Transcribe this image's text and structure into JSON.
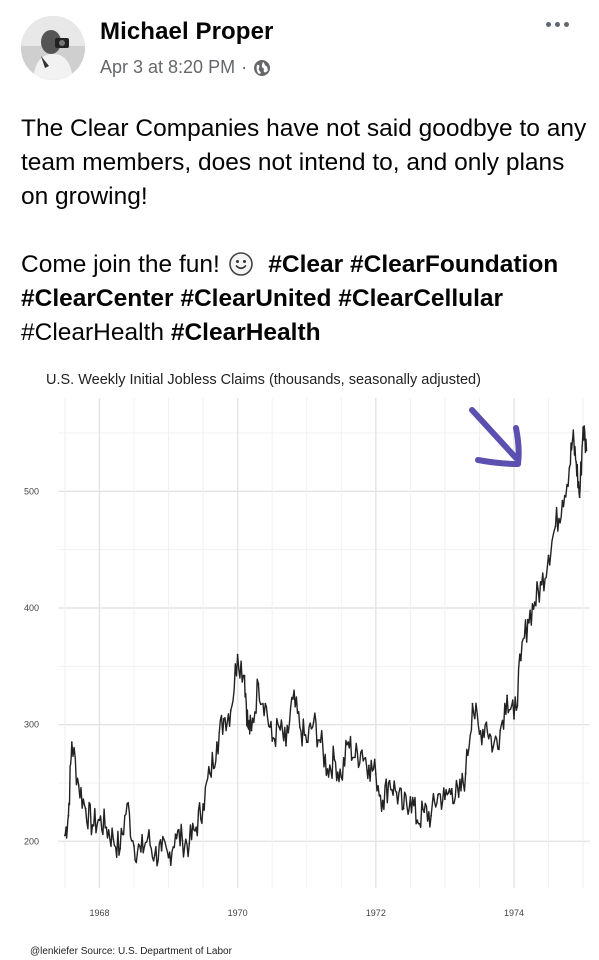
{
  "post": {
    "author": "Michael Proper",
    "timestamp": "Apr 3 at 8:20 PM",
    "separator": "·",
    "body_line1": "The Clear Companies have not said goodbye to any team members, does not intend to, and only plans on growing!",
    "body_line2_prefix": "Come join the fun!",
    "hashtags": [
      {
        "text": "#Clear",
        "bold": true
      },
      {
        "text": "#ClearFoundation",
        "bold": true
      },
      {
        "text": "#ClearCenter",
        "bold": true
      },
      {
        "text": "#ClearUnited",
        "bold": true
      },
      {
        "text": "#ClearCellular",
        "bold": true
      },
      {
        "text": "#ClearHealth",
        "bold": false
      },
      {
        "text": "#ClearHealth",
        "bold": true
      }
    ],
    "icons": {
      "more": "more-horizontal-icon",
      "privacy": "globe-icon",
      "emoji": "slightly-smiling-face-icon"
    }
  },
  "chart_data": {
    "type": "line",
    "title": "U.S. Weekly Initial Jobless Claims (thousands, seasonally adjusted)",
    "source": "@lenkiefer Source: U.S. Department of Labor",
    "x_ticks": [
      "1968",
      "1970",
      "1972",
      "1974"
    ],
    "y_ticks": [
      200,
      300,
      400,
      500
    ],
    "xlim": [
      1967.4,
      1975.1
    ],
    "ylim": [
      160,
      580
    ],
    "grid": true,
    "series": [
      {
        "color": "#222222",
        "x": [
          1967.5,
          1967.55,
          1967.6,
          1967.7,
          1967.8,
          1967.9,
          1968.0,
          1968.1,
          1968.2,
          1968.3,
          1968.4,
          1968.5,
          1968.6,
          1968.7,
          1968.8,
          1968.9,
          1969.0,
          1969.1,
          1969.2,
          1969.3,
          1969.4,
          1969.5,
          1969.6,
          1969.7,
          1969.8,
          1969.9,
          1970.0,
          1970.1,
          1970.15,
          1970.2,
          1970.3,
          1970.4,
          1970.5,
          1970.6,
          1970.7,
          1970.8,
          1970.9,
          1971.0,
          1971.1,
          1971.2,
          1971.3,
          1971.4,
          1971.5,
          1971.6,
          1971.7,
          1971.8,
          1971.9,
          1972.0,
          1972.1,
          1972.2,
          1972.3,
          1972.4,
          1972.5,
          1972.6,
          1972.7,
          1972.8,
          1972.9,
          1973.0,
          1973.1,
          1973.2,
          1973.3,
          1973.4,
          1973.5,
          1973.6,
          1973.7,
          1973.8,
          1973.9,
          1974.0,
          1974.1,
          1974.2,
          1974.3,
          1974.4,
          1974.5,
          1974.6,
          1974.7,
          1974.8,
          1974.85,
          1974.9,
          1974.95,
          1975.0,
          1975.05
        ],
        "y": [
          205,
          222,
          285,
          248,
          228,
          214,
          218,
          212,
          202,
          194,
          232,
          196,
          191,
          203,
          188,
          192,
          186,
          206,
          201,
          198,
          212,
          232,
          258,
          285,
          305,
          312,
          360,
          342,
          298,
          295,
          335,
          318,
          286,
          298,
          282,
          322,
          298,
          285,
          302,
          285,
          262,
          270,
          255,
          285,
          272,
          278,
          265,
          258,
          235,
          252,
          242,
          228,
          238,
          218,
          225,
          222,
          240,
          236,
          245,
          238,
          258,
          318,
          292,
          302,
          281,
          295,
          325,
          305,
          355,
          390,
          405,
          420,
          445,
          470,
          492,
          520,
          545,
          525,
          495,
          555,
          535
        ]
      }
    ],
    "annotation": {
      "type": "arrow",
      "color": "#5b4fb0"
    }
  }
}
